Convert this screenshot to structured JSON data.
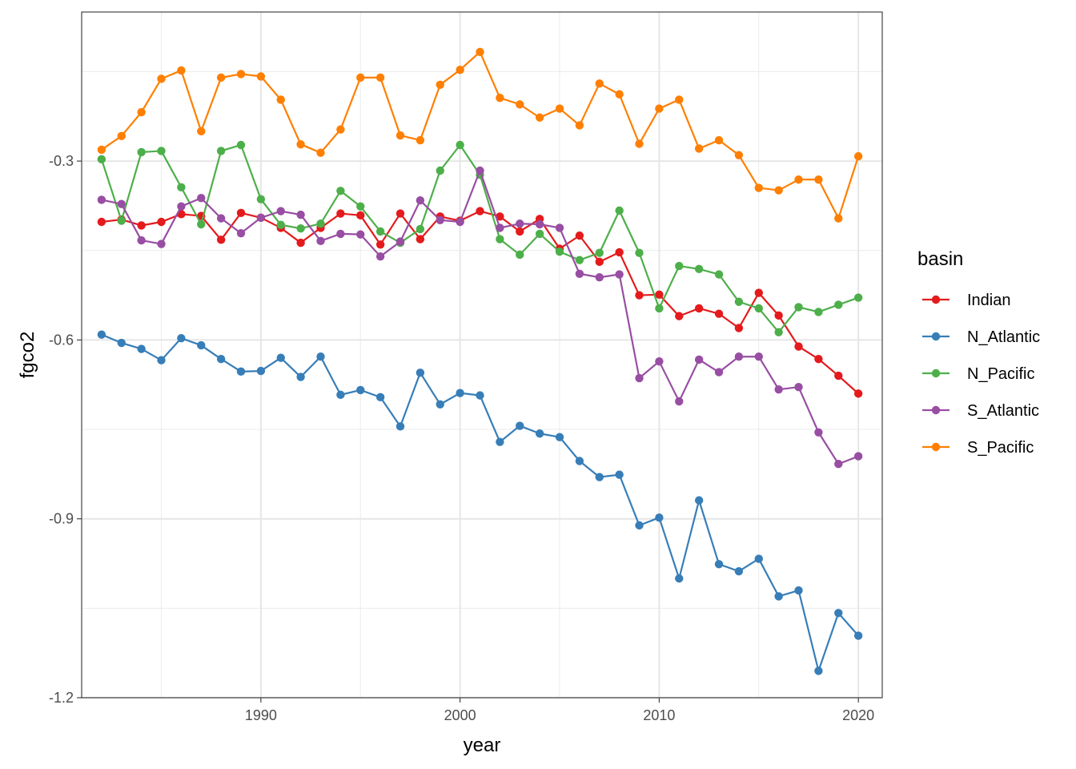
{
  "chart_data": {
    "type": "line",
    "xlabel": "year",
    "ylabel": "fgco2",
    "xlim": [
      1981,
      2021.2
    ],
    "ylim": [
      -1.2,
      -0.05
    ],
    "x_ticks": [
      1990,
      2000,
      2010,
      2020
    ],
    "x_tick_labels": [
      "1990",
      "2000",
      "2010",
      "2020"
    ],
    "y_ticks": [
      -1.2,
      -0.9,
      -0.6,
      -0.3
    ],
    "y_tick_labels": [
      "-1.2",
      "-0.9",
      "-0.6",
      "-0.3"
    ],
    "grid": true,
    "legend": {
      "title": "basin",
      "placement": "right"
    },
    "x": [
      1982,
      1983,
      1984,
      1985,
      1986,
      1987,
      1988,
      1989,
      1990,
      1991,
      1992,
      1993,
      1994,
      1995,
      1996,
      1997,
      1998,
      1999,
      2000,
      2001,
      2002,
      2003,
      2004,
      2005,
      2006,
      2007,
      2008,
      2009,
      2010,
      2011,
      2012,
      2013,
      2014,
      2015,
      2016,
      2017,
      2018,
      2019,
      2020
    ],
    "series": [
      {
        "name": "Indian",
        "color": "#E41A1C",
        "values": [
          -0.402,
          -0.398,
          -0.408,
          -0.402,
          -0.389,
          -0.392,
          -0.432,
          -0.387,
          -0.395,
          -0.412,
          -0.437,
          -0.412,
          -0.388,
          -0.391,
          -0.44,
          -0.388,
          -0.431,
          -0.393,
          -0.4,
          -0.384,
          -0.393,
          -0.418,
          -0.397,
          -0.447,
          -0.425,
          -0.469,
          -0.453,
          -0.525,
          -0.524,
          -0.56,
          -0.547,
          -0.556,
          -0.58,
          -0.521,
          -0.559,
          -0.611,
          -0.632,
          -0.66,
          -0.69
        ]
      },
      {
        "name": "N_Atlantic",
        "color": "#377EB8",
        "values": [
          -0.591,
          -0.605,
          -0.615,
          -0.634,
          -0.597,
          -0.609,
          -0.632,
          -0.653,
          -0.652,
          -0.63,
          -0.662,
          -0.628,
          -0.692,
          -0.684,
          -0.696,
          -0.745,
          -0.655,
          -0.708,
          -0.689,
          -0.693,
          -0.771,
          -0.744,
          -0.757,
          -0.763,
          -0.803,
          -0.83,
          -0.826,
          -0.911,
          -0.898,
          -1.0,
          -0.869,
          -0.976,
          -0.988,
          -0.967,
          -1.03,
          -1.02,
          -1.155,
          -1.058,
          -1.096
        ]
      },
      {
        "name": "N_Pacific",
        "color": "#4DAF4A",
        "values": [
          -0.297,
          -0.4,
          -0.285,
          -0.283,
          -0.344,
          -0.406,
          -0.283,
          -0.273,
          -0.364,
          -0.407,
          -0.413,
          -0.405,
          -0.35,
          -0.376,
          -0.418,
          -0.437,
          -0.414,
          -0.316,
          -0.273,
          -0.323,
          -0.431,
          -0.457,
          -0.422,
          -0.452,
          -0.466,
          -0.454,
          -0.383,
          -0.454,
          -0.547,
          -0.476,
          -0.481,
          -0.49,
          -0.536,
          -0.547,
          -0.587,
          -0.545,
          -0.553,
          -0.541,
          -0.529
        ]
      },
      {
        "name": "S_Atlantic",
        "color": "#984EA3",
        "values": [
          -0.365,
          -0.372,
          -0.433,
          -0.439,
          -0.376,
          -0.362,
          -0.396,
          -0.421,
          -0.395,
          -0.384,
          -0.39,
          -0.434,
          -0.422,
          -0.423,
          -0.46,
          -0.435,
          -0.366,
          -0.399,
          -0.402,
          -0.316,
          -0.412,
          -0.405,
          -0.406,
          -0.412,
          -0.489,
          -0.495,
          -0.49,
          -0.664,
          -0.636,
          -0.703,
          -0.633,
          -0.654,
          -0.628,
          -0.628,
          -0.683,
          -0.679,
          -0.755,
          -0.808,
          -0.795
        ]
      },
      {
        "name": "S_Pacific",
        "color": "#FF7F00",
        "values": [
          -0.281,
          -0.258,
          -0.218,
          -0.162,
          -0.148,
          -0.25,
          -0.16,
          -0.154,
          -0.158,
          -0.197,
          -0.272,
          -0.286,
          -0.247,
          -0.16,
          -0.16,
          -0.257,
          -0.265,
          -0.172,
          -0.147,
          -0.117,
          -0.194,
          -0.205,
          -0.227,
          -0.212,
          -0.24,
          -0.17,
          -0.188,
          -0.271,
          -0.212,
          -0.197,
          -0.279,
          -0.265,
          -0.29,
          -0.345,
          -0.349,
          -0.331,
          -0.331,
          -0.396,
          -0.292
        ]
      }
    ]
  }
}
